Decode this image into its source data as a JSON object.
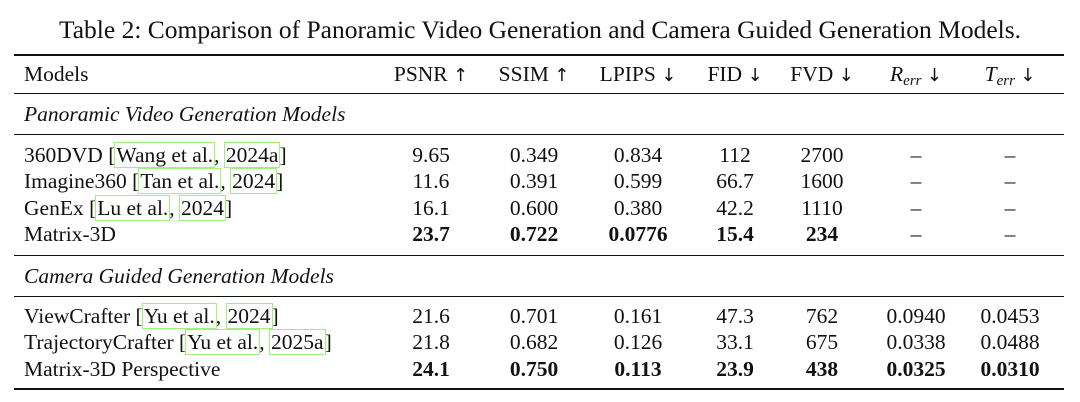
{
  "caption": "Table 2: Comparison of Panoramic Video Generation and Camera Guided Generation Models.",
  "headers": {
    "models": "Models",
    "psnr": "PSNR",
    "ssim": "SSIM",
    "lpips": "LPIPS",
    "fid": "FID",
    "fvd": "FVD",
    "r_base": "R",
    "t_base": "T",
    "err_sub": "err",
    "up": "↑",
    "down": "↓"
  },
  "sections": [
    {
      "title": "Panoramic Video Generation Models",
      "rows": [
        {
          "name": "360DVD",
          "cite_author": "Wang et al.",
          "cite_year": "2024a",
          "psnr": "9.65",
          "ssim": "0.349",
          "lpips": "0.834",
          "fid": "112",
          "fvd": "2700",
          "rerr": "–",
          "terr": "–",
          "bold": false
        },
        {
          "name": "Imagine360",
          "cite_author": "Tan et al.",
          "cite_year": "2024",
          "psnr": "11.6",
          "ssim": "0.391",
          "lpips": "0.599",
          "fid": "66.7",
          "fvd": "1600",
          "rerr": "–",
          "terr": "–",
          "bold": false
        },
        {
          "name": "GenEx",
          "cite_author": "Lu et al.",
          "cite_year": "2024",
          "psnr": "16.1",
          "ssim": "0.600",
          "lpips": "0.380",
          "fid": "42.2",
          "fvd": "1110",
          "rerr": "–",
          "terr": "–",
          "bold": false
        },
        {
          "name": "Matrix-3D",
          "cite_author": "",
          "cite_year": "",
          "psnr": "23.7",
          "ssim": "0.722",
          "lpips": "0.0776",
          "fid": "15.4",
          "fvd": "234",
          "rerr": "–",
          "terr": "–",
          "bold": true
        }
      ]
    },
    {
      "title": "Camera Guided Generation Models",
      "rows": [
        {
          "name": "ViewCrafter",
          "cite_author": "Yu et al.",
          "cite_year": "2024",
          "psnr": "21.6",
          "ssim": "0.701",
          "lpips": "0.161",
          "fid": "47.3",
          "fvd": "762",
          "rerr": "0.0940",
          "terr": "0.0453",
          "bold": false
        },
        {
          "name": "TrajectoryCrafter",
          "cite_author": "Yu et al.",
          "cite_year": "2025a",
          "psnr": "21.8",
          "ssim": "0.682",
          "lpips": "0.126",
          "fid": "33.1",
          "fvd": "675",
          "rerr": "0.0338",
          "terr": "0.0488",
          "bold": false
        },
        {
          "name": "Matrix-3D Perspective",
          "cite_author": "",
          "cite_year": "",
          "psnr": "24.1",
          "ssim": "0.750",
          "lpips": "0.113",
          "fid": "23.9",
          "fvd": "438",
          "rerr": "0.0325",
          "terr": "0.0310",
          "bold": true
        }
      ]
    }
  ]
}
